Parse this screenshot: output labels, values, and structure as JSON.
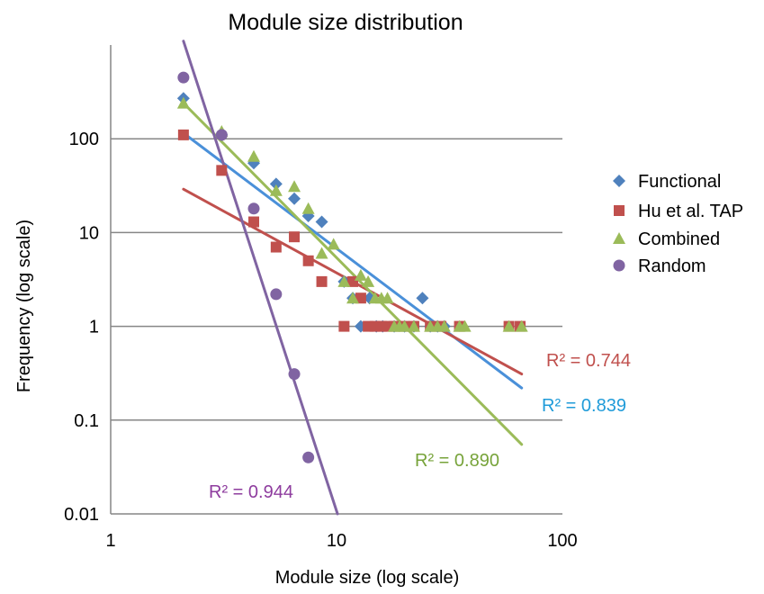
{
  "chart_data": {
    "type": "scatter",
    "title": "Module size distribution",
    "xlabel": "Module size (log scale)",
    "ylabel": "Frequency (log scale)",
    "xscale": "log",
    "yscale": "log",
    "xlim": [
      1,
      100
    ],
    "ylim": [
      0.01,
      1000
    ],
    "x_ticks": [
      "1",
      "10",
      "100"
    ],
    "y_ticks": [
      "0.01",
      "0.1",
      "1",
      "10",
      "100"
    ],
    "grid": "horizontal",
    "legend_position": "right",
    "series": [
      {
        "name": "Functional",
        "marker": "diamond",
        "color": "#4F81BD",
        "points": [
          [
            2.1,
            270
          ],
          [
            3.1,
            110
          ],
          [
            4.3,
            55
          ],
          [
            5.4,
            33
          ],
          [
            6.5,
            23
          ],
          [
            7.5,
            15
          ],
          [
            8.6,
            13
          ],
          [
            10.8,
            3
          ],
          [
            11.8,
            2
          ],
          [
            12.8,
            1
          ],
          [
            14,
            2
          ],
          [
            15,
            1
          ],
          [
            16,
            1
          ],
          [
            18,
            1
          ],
          [
            20,
            1
          ],
          [
            22,
            1
          ],
          [
            24,
            2
          ],
          [
            26,
            1
          ],
          [
            28,
            1
          ],
          [
            30,
            1
          ]
        ],
        "trendline": {
          "x1": 2.1,
          "y1": 115,
          "x2": 66,
          "y2": 0.22
        },
        "r2": "R² = 0.839",
        "r2_color": "#1F9BD9"
      },
      {
        "name": "Hu et al. TAP",
        "marker": "square",
        "color": "#C0504D",
        "points": [
          [
            2.1,
            110
          ],
          [
            3.1,
            46
          ],
          [
            4.3,
            13
          ],
          [
            5.4,
            7
          ],
          [
            6.5,
            9
          ],
          [
            7.5,
            5
          ],
          [
            8.6,
            3
          ],
          [
            10.8,
            1
          ],
          [
            11.8,
            3
          ],
          [
            12.8,
            2
          ],
          [
            13.8,
            1
          ],
          [
            14.8,
            1
          ],
          [
            15.8,
            1
          ],
          [
            16.8,
            1
          ],
          [
            18,
            1
          ],
          [
            20,
            1
          ],
          [
            22,
            1
          ],
          [
            26,
            1
          ],
          [
            29,
            1
          ],
          [
            35,
            1
          ],
          [
            58,
            1
          ],
          [
            65,
            1
          ]
        ],
        "trendline": {
          "x1": 2.1,
          "y1": 29,
          "x2": 66,
          "y2": 0.31
        },
        "r2": "R² = 0.744",
        "r2_color": "#C0504D"
      },
      {
        "name": "Combined",
        "marker": "triangle",
        "color": "#9BBB59",
        "points": [
          [
            2.1,
            240
          ],
          [
            3.1,
            120
          ],
          [
            4.3,
            65
          ],
          [
            5.4,
            28
          ],
          [
            6.5,
            31
          ],
          [
            7.5,
            18
          ],
          [
            8.6,
            6
          ],
          [
            9.7,
            7.5
          ],
          [
            10.8,
            3
          ],
          [
            11.8,
            2
          ],
          [
            12.8,
            3.5
          ],
          [
            13.8,
            3
          ],
          [
            14.8,
            2
          ],
          [
            15.8,
            2
          ],
          [
            16.8,
            2
          ],
          [
            18,
            1
          ],
          [
            19,
            1
          ],
          [
            20,
            1
          ],
          [
            22,
            1
          ],
          [
            26,
            1
          ],
          [
            28,
            1
          ],
          [
            30,
            1
          ],
          [
            35,
            1
          ],
          [
            37,
            1
          ],
          [
            58,
            1
          ],
          [
            66,
            1
          ]
        ],
        "trendline": {
          "x1": 2.1,
          "y1": 240,
          "x2": 66,
          "y2": 0.055
        },
        "r2": "R² = 0.890",
        "r2_color": "#77A33A"
      },
      {
        "name": "Random",
        "marker": "circle",
        "color": "#8064A2",
        "points": [
          [
            2.1,
            450
          ],
          [
            3.1,
            110
          ],
          [
            4.3,
            18
          ],
          [
            5.4,
            2.2
          ],
          [
            6.5,
            0.31
          ],
          [
            7.5,
            0.04
          ]
        ],
        "trendline": {
          "x1": 2.1,
          "y1": 1100,
          "x2": 10.1,
          "y2": 0.01
        },
        "r2": "R² = 0.944",
        "r2_color": "#8E3C9E"
      }
    ]
  }
}
